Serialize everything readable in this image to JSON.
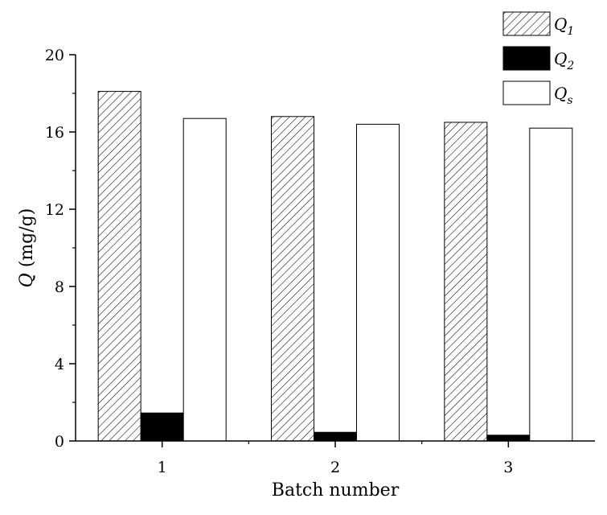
{
  "chart_data": {
    "type": "bar",
    "categories": [
      "1",
      "2",
      "3"
    ],
    "series": [
      {
        "name": "Q1",
        "name_main": "Q",
        "name_sub": "1",
        "fill": "hatch",
        "values": [
          18.1,
          16.8,
          16.5
        ]
      },
      {
        "name": "Q2",
        "name_main": "Q",
        "name_sub": "2",
        "fill": "solid-black",
        "values": [
          1.45,
          0.45,
          0.3
        ]
      },
      {
        "name": "Qs",
        "name_main": "Q",
        "name_sub": "s",
        "fill": "white",
        "values": [
          16.7,
          16.4,
          16.2
        ]
      }
    ],
    "xlabel": "Batch number",
    "ylabel_main": "Q",
    "ylabel_unit": " (mg/g)",
    "ylim": [
      0,
      20
    ],
    "yticks": [
      "0",
      "4",
      "8",
      "12",
      "16",
      "20"
    ],
    "legend_position": "top-right",
    "grid": false,
    "colors": {
      "bar_edge": "#000000",
      "hatch": "#000000",
      "solid": "#000000",
      "background": "#ffffff"
    }
  }
}
